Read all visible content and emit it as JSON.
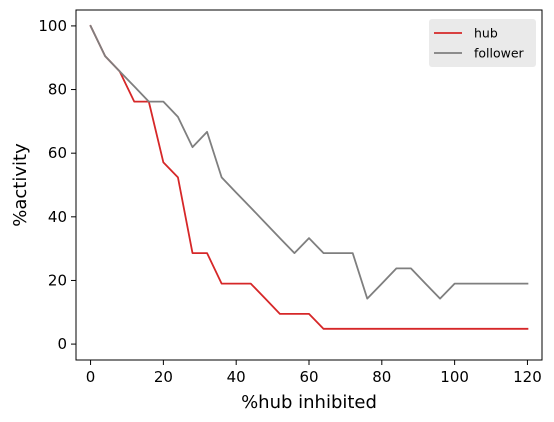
{
  "chart_data": {
    "type": "line",
    "title": "",
    "xlabel": "%hub inhibited",
    "ylabel": "%activity",
    "xlim": [
      -4,
      124
    ],
    "ylim": [
      -5,
      105
    ],
    "xticks": [
      0,
      20,
      40,
      60,
      80,
      100,
      120
    ],
    "yticks": [
      0,
      20,
      40,
      60,
      80,
      100
    ],
    "grid": false,
    "legend_position": "top-right",
    "series": [
      {
        "name": "hub",
        "color": "#d62728",
        "x": [
          0,
          4,
          8,
          12,
          16,
          20,
          24,
          28,
          32,
          36,
          40,
          44,
          48,
          52,
          56,
          60,
          64,
          68,
          72,
          76,
          80,
          84,
          88,
          92,
          96,
          100,
          104,
          108,
          112,
          116,
          120
        ],
        "y": [
          100,
          90.5,
          85.7,
          76.2,
          76.2,
          57.1,
          52.4,
          28.6,
          28.6,
          19.0,
          19.0,
          19.0,
          14.3,
          9.5,
          9.5,
          9.5,
          4.8,
          4.8,
          4.8,
          4.8,
          4.8,
          4.8,
          4.8,
          4.8,
          4.8,
          4.8,
          4.8,
          4.8,
          4.8,
          4.8,
          4.8
        ]
      },
      {
        "name": "follower",
        "color": "#7f7f7f",
        "x": [
          0,
          4,
          8,
          12,
          16,
          20,
          24,
          28,
          32,
          36,
          40,
          44,
          48,
          52,
          56,
          60,
          64,
          68,
          72,
          76,
          80,
          84,
          88,
          92,
          96,
          100,
          104,
          108,
          112,
          116,
          120
        ],
        "y": [
          100,
          90.5,
          85.7,
          81.0,
          76.2,
          76.2,
          71.4,
          61.9,
          66.7,
          52.4,
          47.6,
          42.9,
          38.1,
          33.3,
          28.6,
          33.3,
          28.6,
          28.6,
          28.6,
          14.3,
          19.0,
          23.8,
          23.8,
          19.0,
          14.3,
          19.0,
          19.0,
          19.0,
          19.0,
          19.0,
          19.0
        ]
      }
    ]
  }
}
